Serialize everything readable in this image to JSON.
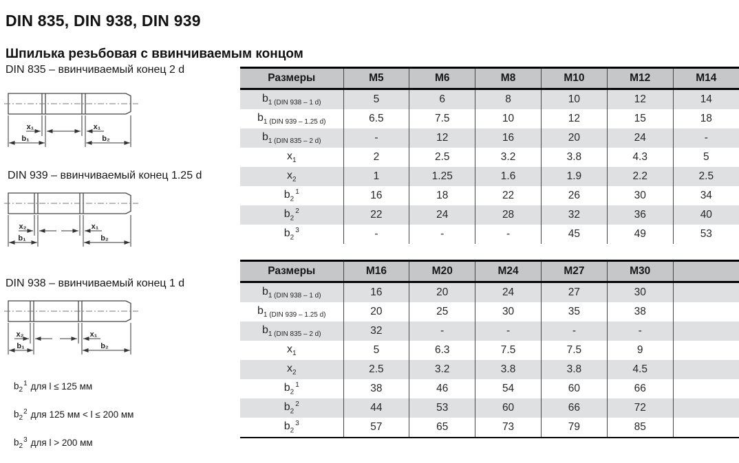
{
  "page": {
    "title": "DIN 835, DIN 938, DIN 939",
    "subtitle": "Шпилька резьбовая с ввинчиваемым концом"
  },
  "colors": {
    "header_bg": "#c6c7c8",
    "stripe_bg": "#dfe0e1",
    "grid_line": "#454545",
    "border": "#000000"
  },
  "diagrams": [
    {
      "caption": "DIN 835 – ввинчиваемый конец 2 d",
      "labels": {
        "x_left": "x₁",
        "x_right": "x₁",
        "b_left": "b₁",
        "b_right": "b₂"
      }
    },
    {
      "caption": "DIN 939 – ввинчиваемый конец 1.25 d",
      "labels": {
        "x_left": "x₂",
        "x_right": "x₁",
        "b_left": "b₁",
        "b_right": "b₂"
      }
    },
    {
      "caption": "DIN 938 – ввинчиваемый конец 1 d",
      "labels": {
        "x_left": "x₂",
        "x_right": "x₁",
        "b_left": "b₁",
        "b_right": "b₂"
      }
    }
  ],
  "footnotes": [
    {
      "base": "b",
      "sub": "2",
      "sup": "1",
      "text": "для l ≤ 125 мм"
    },
    {
      "base": "b",
      "sub": "2",
      "sup": "2",
      "text": "для 125 мм < l ≤ 200 мм"
    },
    {
      "base": "b",
      "sub": "2",
      "sup": "3",
      "text": "для l > 200 мм"
    }
  ],
  "tables": [
    {
      "header": [
        "Размеры",
        "M5",
        "M6",
        "M8",
        "M10",
        "M12",
        "M14"
      ],
      "rows": [
        {
          "label": {
            "base": "b",
            "sub": "1 (DIN 938 – 1 d)"
          },
          "values": [
            "5",
            "6",
            "8",
            "10",
            "12",
            "14"
          ]
        },
        {
          "label": {
            "base": "b",
            "sub": "1 (DIN 939 – 1.25 d)"
          },
          "values": [
            "6.5",
            "7.5",
            "10",
            "12",
            "15",
            "18"
          ]
        },
        {
          "label": {
            "base": "b",
            "sub": "1 (DIN 835 – 2 d)"
          },
          "values": [
            "-",
            "12",
            "16",
            "20",
            "24",
            "-"
          ]
        },
        {
          "label": {
            "base": "x",
            "sub": "1"
          },
          "values": [
            "2",
            "2.5",
            "3.2",
            "3.8",
            "4.3",
            "5"
          ]
        },
        {
          "label": {
            "base": "x",
            "sub": "2"
          },
          "values": [
            "1",
            "1.25",
            "1.6",
            "1.9",
            "2.2",
            "2.5"
          ]
        },
        {
          "label": {
            "base": "b",
            "sub": "2",
            "sup": "1"
          },
          "values": [
            "16",
            "18",
            "22",
            "26",
            "30",
            "34"
          ]
        },
        {
          "label": {
            "base": "b",
            "sub": "2",
            "sup": "2"
          },
          "values": [
            "22",
            "24",
            "28",
            "32",
            "36",
            "40"
          ]
        },
        {
          "label": {
            "base": "b",
            "sub": "2",
            "sup": "3"
          },
          "values": [
            "-",
            "-",
            "-",
            "45",
            "49",
            "53"
          ]
        }
      ]
    },
    {
      "header": [
        "Размеры",
        "M16",
        "M20",
        "M24",
        "M27",
        "M30",
        ""
      ],
      "rows": [
        {
          "label": {
            "base": "b",
            "sub": "1 (DIN 938 – 1 d)"
          },
          "values": [
            "16",
            "20",
            "24",
            "27",
            "30",
            ""
          ]
        },
        {
          "label": {
            "base": "b",
            "sub": "1 (DIN 939 – 1.25 d)"
          },
          "values": [
            "20",
            "25",
            "30",
            "35",
            "38",
            ""
          ]
        },
        {
          "label": {
            "base": "b",
            "sub": "1 (DIN 835 – 2 d)"
          },
          "values": [
            "32",
            "-",
            "-",
            "-",
            "-",
            ""
          ]
        },
        {
          "label": {
            "base": "x",
            "sub": "1"
          },
          "values": [
            "5",
            "6.3",
            "7.5",
            "7.5",
            "9",
            ""
          ]
        },
        {
          "label": {
            "base": "x",
            "sub": "2"
          },
          "values": [
            "2.5",
            "3.2",
            "3.8",
            "3.8",
            "4.5",
            ""
          ]
        },
        {
          "label": {
            "base": "b",
            "sub": "2",
            "sup": "1"
          },
          "values": [
            "38",
            "46",
            "54",
            "60",
            "66",
            ""
          ]
        },
        {
          "label": {
            "base": "b",
            "sub": "2",
            "sup": "2"
          },
          "values": [
            "44",
            "53",
            "60",
            "66",
            "72",
            ""
          ]
        },
        {
          "label": {
            "base": "b",
            "sub": "2",
            "sup": "3"
          },
          "values": [
            "57",
            "65",
            "73",
            "79",
            "85",
            ""
          ]
        }
      ]
    }
  ]
}
